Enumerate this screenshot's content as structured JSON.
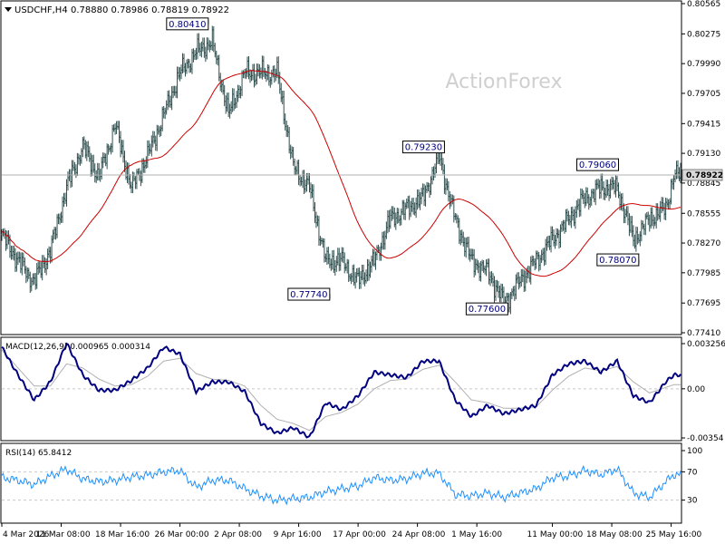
{
  "header": {
    "symbol_label": "USDCHF,H4",
    "ohlc": "0.78880 0.78986 0.78819 0.78922"
  },
  "watermark": "ActionForex",
  "colors": {
    "price": "#2f4f4f",
    "ma": "#cc0000",
    "macd": "#000080",
    "signal": "#b0b0b0",
    "rsi": "#1e90ff",
    "grid_line": "#c8c8c8",
    "current_line": "#b0b0b0",
    "annotation_text": "#000080"
  },
  "chart_data": [
    {
      "type": "bar",
      "name": "price",
      "x_start": "2026-03-04 00:00",
      "x_end": "2026-05-26 20:00",
      "bar_interval_hours": 4,
      "ylim": [
        0.7741,
        0.80565
      ],
      "yticks": [
        "0.80565",
        "0.80275",
        "0.79990",
        "0.79705",
        "0.79415",
        "0.79130",
        "0.78845",
        "0.78555",
        "0.78270",
        "0.77985",
        "0.77695",
        "0.77410"
      ],
      "current_price": "0.78922",
      "moving_average": "red moving average line",
      "annotations": [
        {
          "text": "0.80410",
          "date": "2026-03-29 12:00",
          "value": 0.8041,
          "type": "high"
        },
        {
          "text": "0.77740",
          "date": "2026-04-13 12:00",
          "value": 0.7774,
          "type": "low"
        },
        {
          "text": "0.79230",
          "date": "2026-04-27 16:00",
          "value": 0.7923,
          "type": "high"
        },
        {
          "text": "0.77600",
          "date": "2026-05-05 12:00",
          "value": 0.776,
          "type": "low"
        },
        {
          "text": "0.79060",
          "date": "2026-05-19 04:00",
          "value": 0.7906,
          "type": "high"
        },
        {
          "text": "0.78070",
          "date": "2026-05-21 16:00",
          "value": 0.7807,
          "type": "low"
        }
      ],
      "closes": [
        {
          "date": "2026-03-04",
          "close": 0.7835
        },
        {
          "date": "2026-03-06",
          "close": 0.781
        },
        {
          "date": "2026-03-08",
          "close": 0.779
        },
        {
          "date": "2026-03-10",
          "close": 0.782
        },
        {
          "date": "2026-03-12",
          "close": 0.788
        },
        {
          "date": "2026-03-14",
          "close": 0.792
        },
        {
          "date": "2026-03-16",
          "close": 0.789
        },
        {
          "date": "2026-03-18",
          "close": 0.794
        },
        {
          "date": "2026-03-20",
          "close": 0.788
        },
        {
          "date": "2026-03-22",
          "close": 0.791
        },
        {
          "date": "2026-03-24",
          "close": 0.795
        },
        {
          "date": "2026-03-26",
          "close": 0.799
        },
        {
          "date": "2026-03-28",
          "close": 0.801
        },
        {
          "date": "2026-03-30",
          "close": 0.802
        },
        {
          "date": "2026-04-01",
          "close": 0.795
        },
        {
          "date": "2026-04-03",
          "close": 0.799
        },
        {
          "date": "2026-04-05",
          "close": 0.799
        },
        {
          "date": "2026-04-07",
          "close": 0.799
        },
        {
          "date": "2026-04-09",
          "close": 0.79
        },
        {
          "date": "2026-04-11",
          "close": 0.788
        },
        {
          "date": "2026-04-13",
          "close": 0.781
        },
        {
          "date": "2026-04-15",
          "close": 0.781
        },
        {
          "date": "2026-04-17",
          "close": 0.779
        },
        {
          "date": "2026-04-19",
          "close": 0.781
        },
        {
          "date": "2026-04-21",
          "close": 0.785
        },
        {
          "date": "2026-04-23",
          "close": 0.786
        },
        {
          "date": "2026-04-25",
          "close": 0.787
        },
        {
          "date": "2026-04-27",
          "close": 0.791
        },
        {
          "date": "2026-04-29",
          "close": 0.785
        },
        {
          "date": "2026-05-01",
          "close": 0.781
        },
        {
          "date": "2026-05-03",
          "close": 0.78
        },
        {
          "date": "2026-05-05",
          "close": 0.777
        },
        {
          "date": "2026-05-07",
          "close": 0.779
        },
        {
          "date": "2026-05-09",
          "close": 0.781
        },
        {
          "date": "2026-05-11",
          "close": 0.783
        },
        {
          "date": "2026-05-13",
          "close": 0.785
        },
        {
          "date": "2026-05-15",
          "close": 0.787
        },
        {
          "date": "2026-05-17",
          "close": 0.788
        },
        {
          "date": "2026-05-19",
          "close": 0.788
        },
        {
          "date": "2026-05-21",
          "close": 0.783
        },
        {
          "date": "2026-05-23",
          "close": 0.785
        },
        {
          "date": "2026-05-25",
          "close": 0.786
        },
        {
          "date": "2026-05-26",
          "close": 0.7892
        }
      ],
      "xticks": [
        "4 Mar 2026",
        "11 Mar 08:00",
        "18 Mar 16:00",
        "26 Mar 00:00",
        "2 Apr 08:00",
        "9 Apr 16:00",
        "17 Apr 00:00",
        "24 Apr 08:00",
        "1 May 16:00",
        "11 May 00:00",
        "18 May 08:00",
        "25 May 16:00"
      ]
    },
    {
      "type": "line",
      "name": "macd",
      "label": "MACD(12,26,9) 0.000965 0.000314",
      "ylim": [
        -0.00354,
        0.003256
      ],
      "yticks": [
        "0.003256",
        "0.00",
        "-0.00354"
      ],
      "series": [
        {
          "name": "MACD",
          "values": [
            0.003,
            0.001,
            -0.0008,
            0.0005,
            0.0033,
            0.001,
            -0.0001,
            -0.0001,
            0.0006,
            0.0015,
            0.003,
            0.0025,
            -0.0002,
            0.0005,
            0.0005,
            -0.0002,
            -0.0025,
            -0.0032,
            -0.0028,
            -0.0035,
            -0.001,
            -0.0015,
            -0.0005,
            0.0012,
            0.001,
            0.0008,
            0.002,
            0.002,
            -0.0008,
            -0.002,
            -0.0012,
            -0.0018,
            -0.0015,
            -0.0012,
            0.001,
            0.0018,
            0.002,
            0.0012,
            0.002,
            -0.0005,
            -0.001,
            0.0005,
            0.001
          ]
        },
        {
          "name": "Signal",
          "values": [
            0.0028,
            0.0015,
            0.0002,
            0.0002,
            0.0018,
            0.0015,
            0.0007,
            0.0002,
            0.0003,
            0.0009,
            0.002,
            0.0022,
            0.0011,
            0.0007,
            0.0006,
            0.0002,
            -0.0012,
            -0.0022,
            -0.0025,
            -0.003,
            -0.002,
            -0.0017,
            -0.0011,
            0.0,
            0.0006,
            0.0007,
            0.0014,
            0.0017,
            0.0005,
            -0.0008,
            -0.001,
            -0.0014,
            -0.0014,
            -0.0013,
            -0.0001,
            0.0009,
            0.0015,
            0.0013,
            0.0016,
            0.0005,
            -0.0003,
            0.0001,
            0.0003
          ]
        }
      ]
    },
    {
      "type": "line",
      "name": "rsi",
      "label": "RSI(14) 65.8412",
      "ylim": [
        0,
        100
      ],
      "yticks": [
        "100",
        "70",
        "30",
        "0"
      ],
      "levels": [
        70,
        30
      ],
      "series": [
        {
          "name": "RSI",
          "values": [
            62,
            58,
            52,
            64,
            74,
            60,
            56,
            58,
            63,
            65,
            70,
            72,
            48,
            58,
            58,
            46,
            36,
            30,
            32,
            34,
            42,
            46,
            50,
            62,
            58,
            60,
            68,
            68,
            38,
            36,
            40,
            34,
            40,
            46,
            62,
            64,
            72,
            66,
            74,
            40,
            34,
            56,
            66
          ]
        }
      ]
    }
  ]
}
